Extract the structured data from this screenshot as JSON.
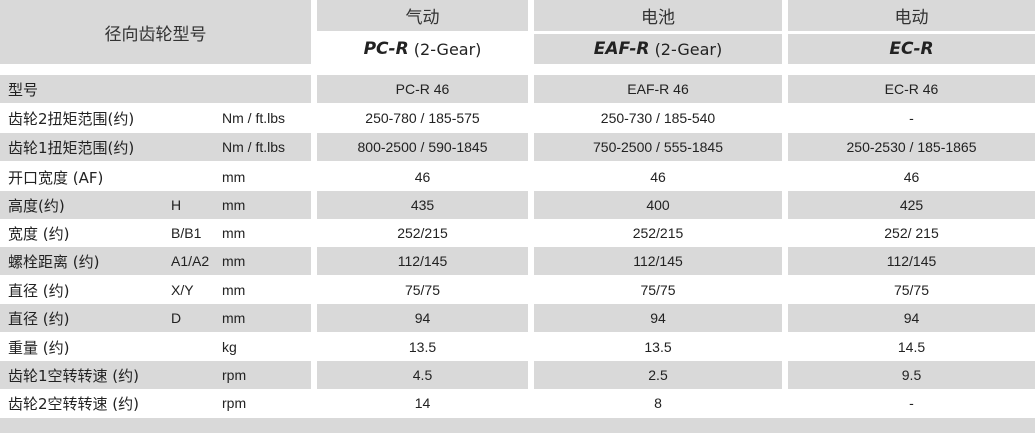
{
  "header": {
    "title": "径向齿轮型号",
    "columns": [
      {
        "type": "气动",
        "model": "PC-R",
        "gear": "(2-Gear)"
      },
      {
        "type": "电池",
        "model": "EAF-R",
        "gear": "(2-Gear)"
      },
      {
        "type": "电动",
        "model": "EC-R",
        "gear": ""
      }
    ]
  },
  "rows": [
    {
      "label": "型号",
      "symbol": "",
      "unit": "",
      "values": [
        "PC-R 46",
        "EAF-R 46",
        "EC-R 46"
      ]
    },
    {
      "label": "齿轮2扭矩范围(约)",
      "symbol": "",
      "unit": "Nm / ft.lbs",
      "values": [
        "250-780 / 185-575",
        "250-730 / 185-540",
        "-"
      ]
    },
    {
      "label": "齿轮1扭矩范围(约)",
      "symbol": "",
      "unit": "Nm / ft.lbs",
      "values": [
        "800-2500 / 590-1845",
        "750-2500 / 555-1845",
        "250-2530 / 185-1865"
      ]
    },
    {
      "label": "开口宽度 (AF)",
      "symbol": "",
      "unit": "mm",
      "values": [
        "46",
        "46",
        "46"
      ]
    },
    {
      "label": "高度(约)",
      "symbol": "H",
      "unit": "mm",
      "values": [
        "435",
        "400",
        "425"
      ]
    },
    {
      "label": "宽度 (约)",
      "symbol": "B/B1",
      "unit": "mm",
      "values": [
        "252/215",
        "252/215",
        "252/ 215"
      ]
    },
    {
      "label": "螺栓距离 (约)",
      "symbol": "A1/A2",
      "unit": "mm",
      "values": [
        "112/145",
        "112/145",
        "112/145"
      ]
    },
    {
      "label": "直径 (约)",
      "symbol": "X/Y",
      "unit": "mm",
      "values": [
        "75/75",
        "75/75",
        "75/75"
      ]
    },
    {
      "label": "直径 (约)",
      "symbol": "D",
      "unit": "mm",
      "values": [
        "94",
        "94",
        "94"
      ]
    },
    {
      "label": "重量 (约)",
      "symbol": "",
      "unit": "kg",
      "values": [
        "13.5",
        "13.5",
        "14.5"
      ]
    },
    {
      "label": "齿轮1空转转速 (约)",
      "symbol": "",
      "unit": "rpm",
      "values": [
        "4.5",
        "2.5",
        "9.5"
      ]
    },
    {
      "label": "齿轮2空转转速 (约)",
      "symbol": "",
      "unit": "rpm",
      "values": [
        "14",
        "8",
        "-"
      ]
    }
  ]
}
